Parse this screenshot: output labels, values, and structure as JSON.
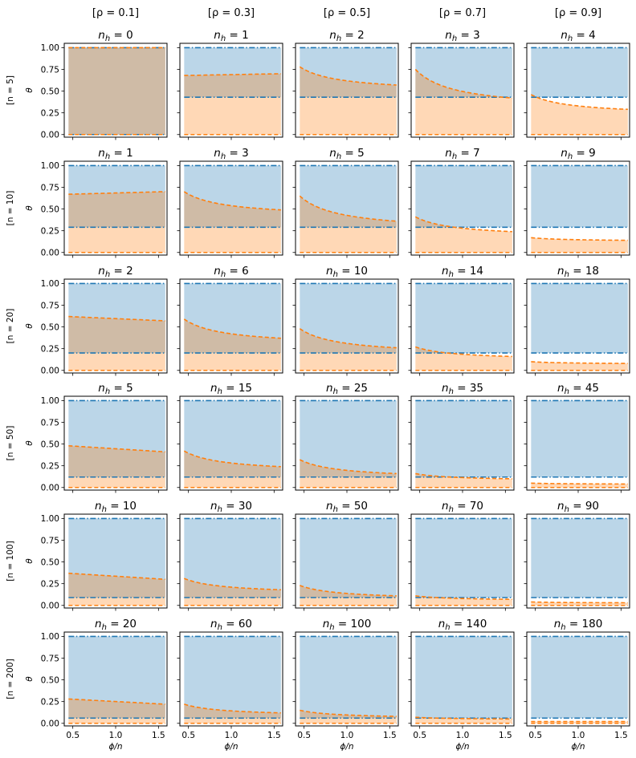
{
  "figure": {
    "column_titles": [
      "[ρ = 0.1]",
      "[ρ = 0.3]",
      "[ρ = 0.5]",
      "[ρ = 0.7]",
      "[ρ = 0.9]"
    ],
    "row_titles": [
      "[n = 5]",
      "[n = 10]",
      "[n = 20]",
      "[n = 50]",
      "[n = 100]",
      "[n = 200]"
    ],
    "panel_title_prefix": "n",
    "panel_title_subscript": "h",
    "xlabel": "ϕ/n",
    "ylabel": "θ",
    "colors": {
      "blue": "#1f77b4",
      "orange": "#ff7f0e",
      "blue_fill": "#1f77b4",
      "orange_fill": "#ff7f0e"
    }
  },
  "chart_data": {
    "type": "area",
    "description_of_series": [
      "blue dash-dot bounds (lower, upper) with blue shaded region",
      "orange dashed bounds (lower, upper curve) with orange shaded region"
    ],
    "xlim": [
      0.4,
      1.6
    ],
    "ylim": [
      -0.03,
      1.05
    ],
    "xticks": [
      0.5,
      1.0,
      1.5
    ],
    "xtick_labels": [
      "0.5",
      "1.0",
      "1.5"
    ],
    "yticks": [
      0.0,
      0.25,
      0.5,
      0.75,
      1.0
    ],
    "ytick_labels": [
      "0.00",
      "0.25",
      "0.50",
      "0.75",
      "1.00"
    ],
    "panels": [
      [
        {
          "title": "0",
          "blue_low": 0.0,
          "blue_high": 1.0,
          "orange_low": 0.0,
          "orange_high_start": 1.0,
          "orange_high_end": 1.0,
          "orange_curve": "flat"
        },
        {
          "title": "1",
          "blue_low": 0.43,
          "blue_high": 1.0,
          "orange_low": 0.0,
          "orange_high_start": 0.68,
          "orange_high_end": 0.7,
          "orange_curve": "flat"
        },
        {
          "title": "2",
          "blue_low": 0.43,
          "blue_high": 1.0,
          "orange_low": 0.0,
          "orange_high_start": 0.78,
          "orange_high_end": 0.57,
          "orange_curve": "decay"
        },
        {
          "title": "3",
          "blue_low": 0.43,
          "blue_high": 1.0,
          "orange_low": 0.0,
          "orange_high_start": 0.75,
          "orange_high_end": 0.42,
          "orange_curve": "decay"
        },
        {
          "title": "4",
          "blue_low": 0.43,
          "blue_high": 1.0,
          "orange_low": 0.0,
          "orange_high_start": 0.46,
          "orange_high_end": 0.29,
          "orange_curve": "decay"
        }
      ],
      [
        {
          "title": "1",
          "blue_low": 0.29,
          "blue_high": 1.0,
          "orange_low": 0.0,
          "orange_high_start": 0.67,
          "orange_high_end": 0.7,
          "orange_curve": "flat"
        },
        {
          "title": "3",
          "blue_low": 0.29,
          "blue_high": 1.0,
          "orange_low": 0.0,
          "orange_high_start": 0.7,
          "orange_high_end": 0.49,
          "orange_curve": "decay"
        },
        {
          "title": "5",
          "blue_low": 0.29,
          "blue_high": 1.0,
          "orange_low": 0.0,
          "orange_high_start": 0.65,
          "orange_high_end": 0.36,
          "orange_curve": "decay"
        },
        {
          "title": "7",
          "blue_low": 0.29,
          "blue_high": 1.0,
          "orange_low": 0.0,
          "orange_high_start": 0.41,
          "orange_high_end": 0.24,
          "orange_curve": "decay"
        },
        {
          "title": "9",
          "blue_low": 0.29,
          "blue_high": 1.0,
          "orange_low": 0.0,
          "orange_high_start": 0.17,
          "orange_high_end": 0.14,
          "orange_curve": "decay"
        }
      ],
      [
        {
          "title": "2",
          "blue_low": 0.2,
          "blue_high": 1.0,
          "orange_low": 0.0,
          "orange_high_start": 0.62,
          "orange_high_end": 0.57,
          "orange_curve": "flat"
        },
        {
          "title": "6",
          "blue_low": 0.2,
          "blue_high": 1.0,
          "orange_low": 0.0,
          "orange_high_start": 0.59,
          "orange_high_end": 0.37,
          "orange_curve": "decay"
        },
        {
          "title": "10",
          "blue_low": 0.2,
          "blue_high": 1.0,
          "orange_low": 0.0,
          "orange_high_start": 0.48,
          "orange_high_end": 0.26,
          "orange_curve": "decay"
        },
        {
          "title": "14",
          "blue_low": 0.2,
          "blue_high": 1.0,
          "orange_low": 0.0,
          "orange_high_start": 0.27,
          "orange_high_end": 0.16,
          "orange_curve": "decay"
        },
        {
          "title": "18",
          "blue_low": 0.2,
          "blue_high": 1.0,
          "orange_low": 0.0,
          "orange_high_start": 0.1,
          "orange_high_end": 0.08,
          "orange_curve": "decay"
        }
      ],
      [
        {
          "title": "5",
          "blue_low": 0.12,
          "blue_high": 1.0,
          "orange_low": 0.0,
          "orange_high_start": 0.48,
          "orange_high_end": 0.41,
          "orange_curve": "flat"
        },
        {
          "title": "15",
          "blue_low": 0.12,
          "blue_high": 1.0,
          "orange_low": 0.0,
          "orange_high_start": 0.42,
          "orange_high_end": 0.24,
          "orange_curve": "decay"
        },
        {
          "title": "25",
          "blue_low": 0.12,
          "blue_high": 1.0,
          "orange_low": 0.0,
          "orange_high_start": 0.32,
          "orange_high_end": 0.16,
          "orange_curve": "decay"
        },
        {
          "title": "35",
          "blue_low": 0.12,
          "blue_high": 1.0,
          "orange_low": 0.0,
          "orange_high_start": 0.16,
          "orange_high_end": 0.1,
          "orange_curve": "decay"
        },
        {
          "title": "45",
          "blue_low": 0.12,
          "blue_high": 1.0,
          "orange_low": 0.0,
          "orange_high_start": 0.05,
          "orange_high_end": 0.04,
          "orange_curve": "decay"
        }
      ],
      [
        {
          "title": "10",
          "blue_low": 0.09,
          "blue_high": 1.0,
          "orange_low": 0.0,
          "orange_high_start": 0.37,
          "orange_high_end": 0.3,
          "orange_curve": "flat"
        },
        {
          "title": "30",
          "blue_low": 0.09,
          "blue_high": 1.0,
          "orange_low": 0.0,
          "orange_high_start": 0.31,
          "orange_high_end": 0.18,
          "orange_curve": "decay"
        },
        {
          "title": "50",
          "blue_low": 0.09,
          "blue_high": 1.0,
          "orange_low": 0.0,
          "orange_high_start": 0.23,
          "orange_high_end": 0.11,
          "orange_curve": "decay"
        },
        {
          "title": "70",
          "blue_low": 0.09,
          "blue_high": 1.0,
          "orange_low": 0.0,
          "orange_high_start": 0.11,
          "orange_high_end": 0.07,
          "orange_curve": "decay"
        },
        {
          "title": "90",
          "blue_low": 0.09,
          "blue_high": 1.0,
          "orange_low": 0.0,
          "orange_high_start": 0.04,
          "orange_high_end": 0.03,
          "orange_curve": "decay"
        }
      ],
      [
        {
          "title": "20",
          "blue_low": 0.06,
          "blue_high": 1.0,
          "orange_low": 0.0,
          "orange_high_start": 0.28,
          "orange_high_end": 0.22,
          "orange_curve": "flat"
        },
        {
          "title": "60",
          "blue_low": 0.06,
          "blue_high": 1.0,
          "orange_low": 0.0,
          "orange_high_start": 0.22,
          "orange_high_end": 0.12,
          "orange_curve": "decay"
        },
        {
          "title": "100",
          "blue_low": 0.06,
          "blue_high": 1.0,
          "orange_low": 0.0,
          "orange_high_start": 0.15,
          "orange_high_end": 0.08,
          "orange_curve": "decay"
        },
        {
          "title": "140",
          "blue_low": 0.06,
          "blue_high": 1.0,
          "orange_low": 0.0,
          "orange_high_start": 0.07,
          "orange_high_end": 0.05,
          "orange_curve": "decay"
        },
        {
          "title": "180",
          "blue_low": 0.06,
          "blue_high": 1.0,
          "orange_low": 0.0,
          "orange_high_start": 0.02,
          "orange_high_end": 0.02,
          "orange_curve": "decay"
        }
      ]
    ]
  }
}
